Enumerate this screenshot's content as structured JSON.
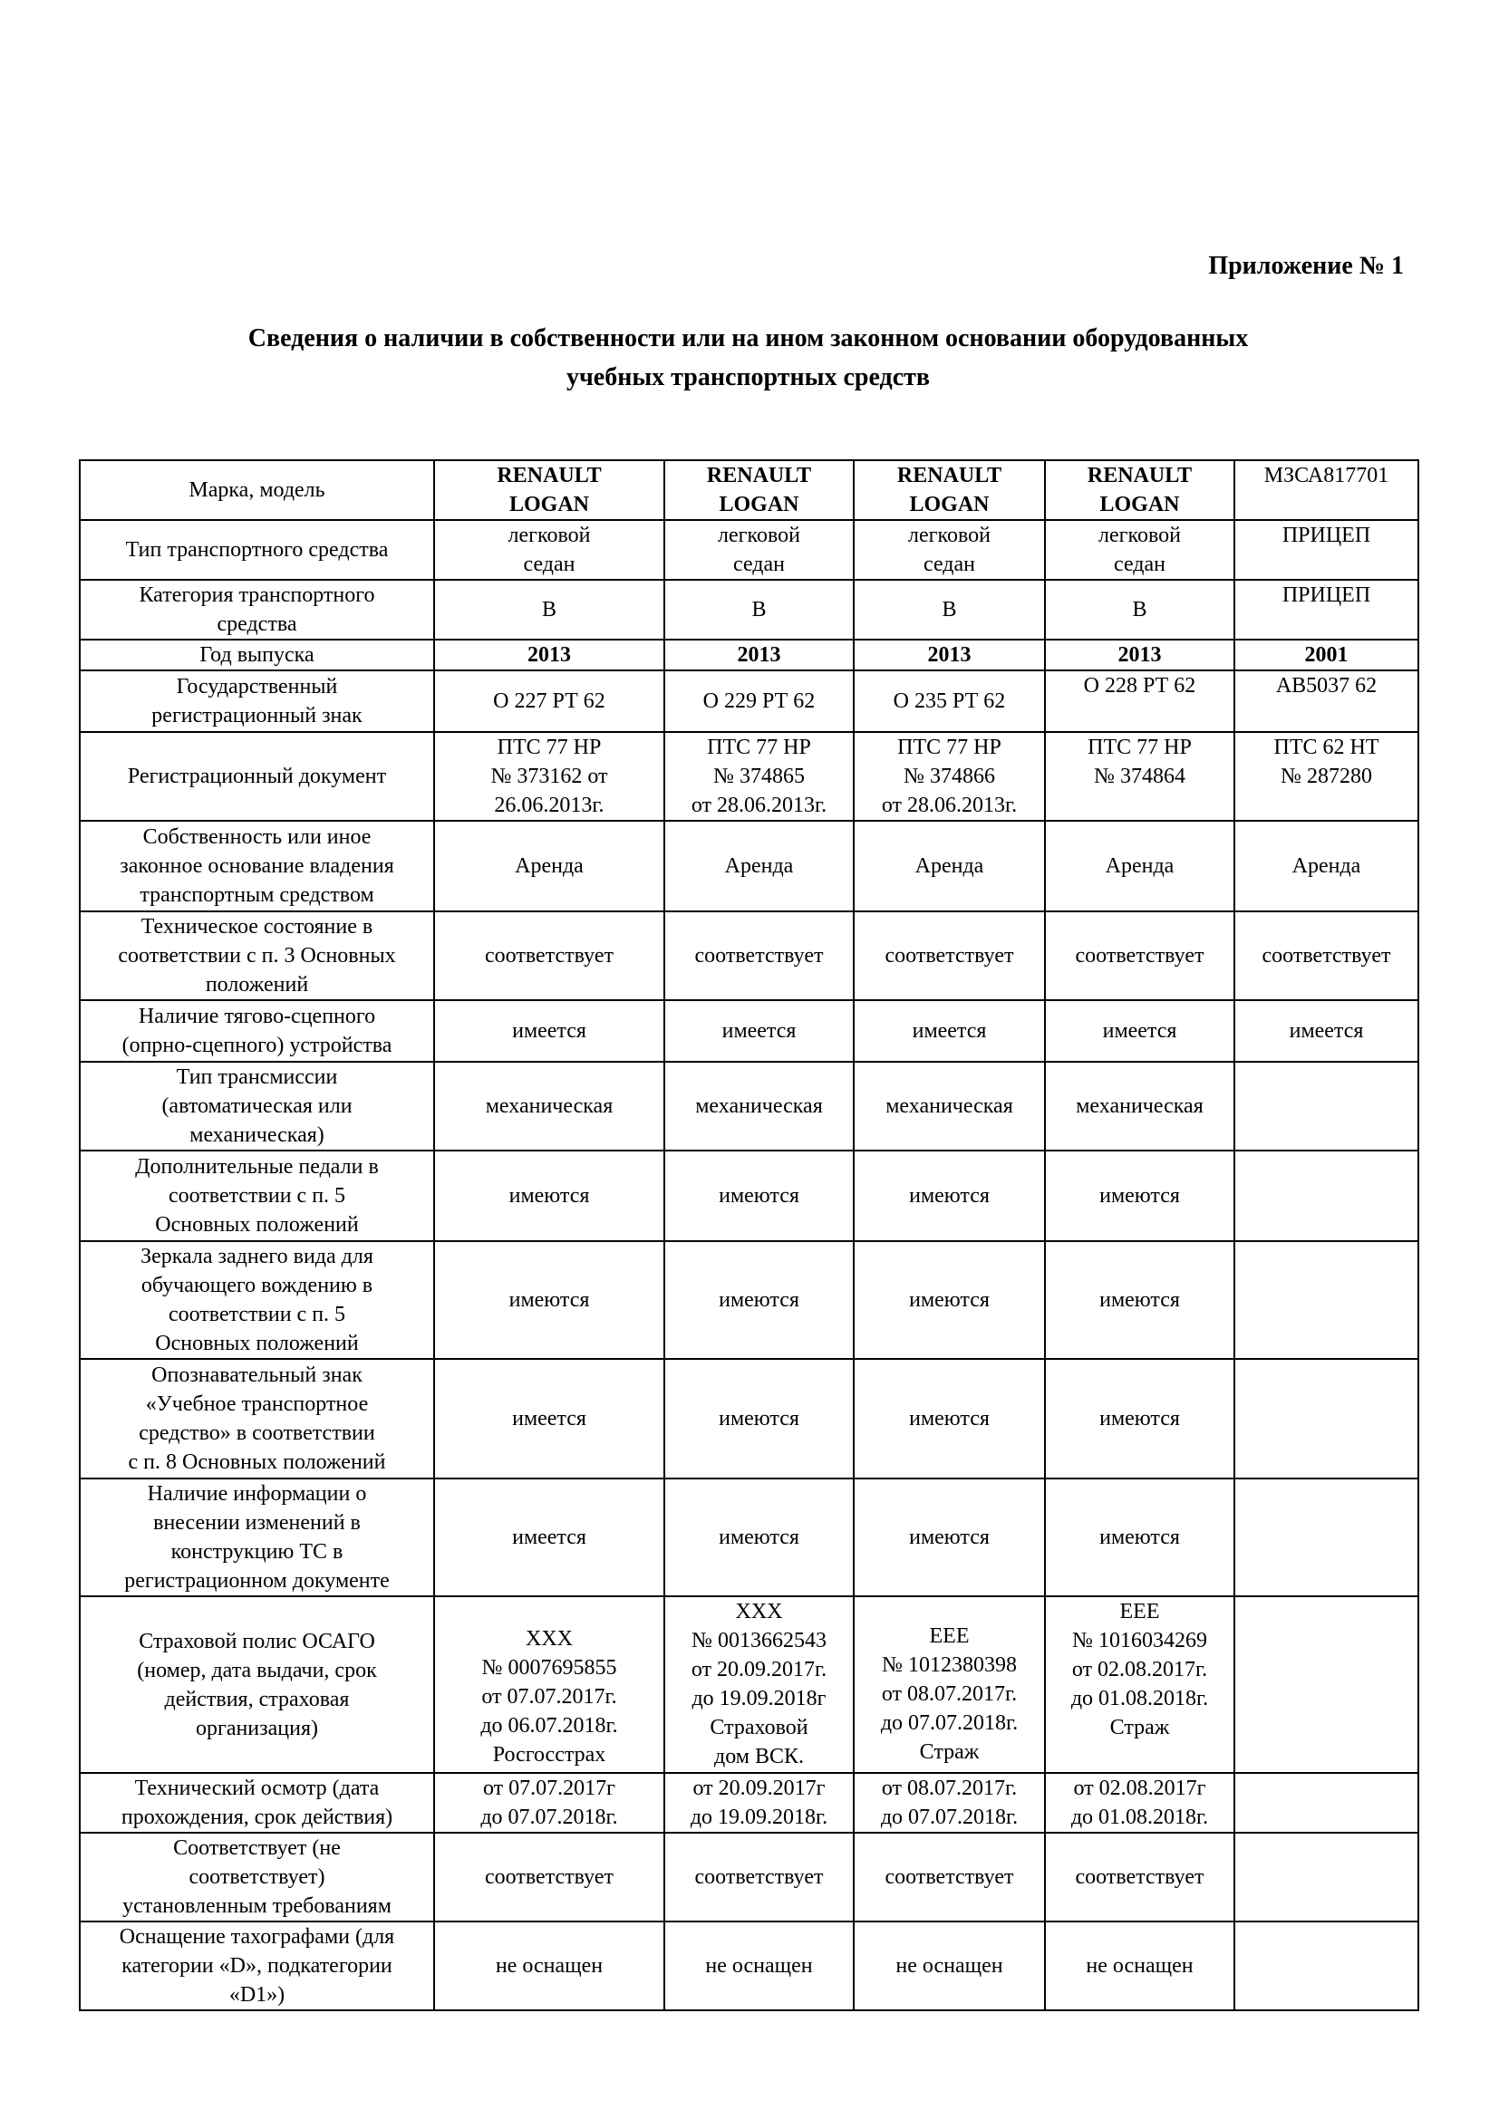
{
  "appendix_label": "Приложение № 1",
  "heading": "Сведения о наличии в собственности или на ином законном основании оборудованных\nучебных транспортных средств",
  "rows": [
    {
      "label": "Марка, модель",
      "values": [
        "RENAULT\nLOGAN",
        "RENAULT\nLOGAN",
        "RENAULT\nLOGAN",
        "RENAULT\nLOGAN",
        "МЗСА817701"
      ]
    },
    {
      "label": "Тип транспортного средства",
      "values": [
        "легковой\nседан",
        "легковой\nседан",
        "легковой\nседан",
        "легковой\nседан",
        "ПРИЦЕП"
      ]
    },
    {
      "label": "Категория транспортного\nсредства",
      "values": [
        "B",
        "B",
        "B",
        "B",
        "ПРИЦЕП"
      ]
    },
    {
      "label": "Год выпуска",
      "values": [
        "2013",
        "2013",
        "2013",
        "2013",
        "2001"
      ]
    },
    {
      "label": "Государственный\nрегистрационный знак",
      "values": [
        "О 227 РТ 62",
        "О 229 РТ  62",
        "О 235 РТ  62",
        "О 228 РТ 62",
        "АВ5037 62"
      ]
    },
    {
      "label": "Регистрационный документ",
      "values": [
        "ПТС 77 НР\n№ 373162 от\n26.06.2013г.",
        "ПТС 77 НР\n№ 374865\nот 28.06.2013г.",
        "ПТС 77 НР\n№ 374866\nот 28.06.2013г.",
        "ПТС 77 НР\n№ 374864",
        "ПТС 62 НТ\n№ 287280"
      ]
    },
    {
      "label": "Собственность или иное\nзаконное основание владения\nтранспортным средством",
      "values": [
        "Аренда",
        "Аренда",
        "Аренда",
        "Аренда",
        "Аренда"
      ]
    },
    {
      "label": "Техническое состояние в\nсоответствии с п. 3 Основных\nположений",
      "values": [
        "соответствует",
        "соответствует",
        "соответствует",
        "соответствует",
        "соответствует"
      ]
    },
    {
      "label": "Наличие тягово-сцепного\n(опрно-сцепного) устройства",
      "values": [
        "имеется",
        "имеется",
        "имеется",
        "имеется",
        "имеется"
      ]
    },
    {
      "label": "Тип трансмиссии\n(автоматическая или\nмеханическая)",
      "values": [
        "механическая",
        "механическая",
        "механическая",
        "механическая",
        ""
      ]
    },
    {
      "label": "Дополнительные педали в\nсоответствии с п. 5\nОсновных положений",
      "values": [
        "имеются",
        "имеются",
        "имеются",
        "имеются",
        ""
      ]
    },
    {
      "label": "Зеркала заднего вида для\nобучающего вождению в\nсоответствии с п. 5\nОсновных положений",
      "values": [
        "имеются",
        "имеются",
        "имеются",
        "имеются",
        ""
      ]
    },
    {
      "label": "Опознавательный знак\n«Учебное транспортное\nсредство» в соответствии\nс п. 8 Основных положений",
      "values": [
        "имеется",
        "имеются",
        "имеются",
        "имеются",
        ""
      ]
    },
    {
      "label": "Наличие информации о\nвнесении изменений в\nконструкцию ТС в\nрегистрационном документе",
      "values": [
        "имеется",
        "имеются",
        "имеются",
        "имеются",
        ""
      ]
    },
    {
      "label": "Страховой полис ОСАГО\n(номер, дата выдачи, срок\nдействия, страховая\nорганизация)",
      "values": [
        "ХХХ\n№ 0007695855\nот 07.07.2017г.\nдо 06.07.2018г.\nРосгосстрах",
        "ХХХ\n№ 0013662543\nот 20.09.2017г.\nдо 19.09.2018г\nСтраховой\nдом ВСК.",
        "ЕЕЕ\n№ 1012380398\nот 08.07.2017г.\nдо 07.07.2018г.\nСтраж",
        "ЕЕЕ\n№ 1016034269\nот 02.08.2017г.\nдо 01.08.2018г.\nСтраж",
        ""
      ]
    },
    {
      "label": "Технический осмотр (дата\nпрохождения, срок действия)",
      "values": [
        "от 07.07.2017г\nдо 07.07.2018г.",
        "от 20.09.2017г\nдо 19.09.2018г.",
        "от 08.07.2017г.\nдо 07.07.2018г.",
        "от 02.08.2017г\nдо 01.08.2018г.",
        ""
      ]
    },
    {
      "label": "Соответствует (не\nсоответствует)\nустановленным требованиям",
      "values": [
        "соответствует",
        "соответствует",
        "соответствует",
        "соответствует",
        ""
      ]
    },
    {
      "label": "Оснащение тахографами (для\nкатегории «D», подкатегории\n«D1»)",
      "values": [
        "не оснащен",
        "не оснащен",
        "не оснащен",
        "не оснащен",
        ""
      ]
    }
  ]
}
